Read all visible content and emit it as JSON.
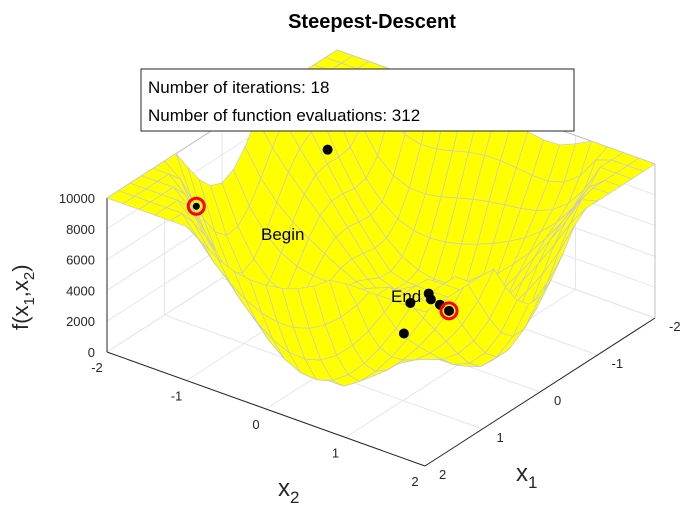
{
  "chart_data": {
    "type": "surface",
    "title": "Steepest-Descent",
    "info_lines": [
      "Number of iterations: 18",
      "Number of function evaluations: 312"
    ],
    "xlabel": {
      "base": "x",
      "sub": "1"
    },
    "ylabel": {
      "base": "x",
      "sub": "2"
    },
    "zlabel": {
      "base": "f(x",
      "sub1": "1",
      "mid": ",x",
      "sub2": "2",
      "end": ")"
    },
    "xlim": [
      -2,
      2
    ],
    "ylim": [
      -2,
      2
    ],
    "zlim": [
      0,
      10000
    ],
    "x_ticks": [
      "-2",
      "-1",
      "0",
      "1",
      "2"
    ],
    "y_ticks": [
      "-2",
      "-1",
      "0",
      "1",
      "2"
    ],
    "z_ticks": [
      "0",
      "2000",
      "4000",
      "6000",
      "8000",
      "10000"
    ],
    "grid": true,
    "surface_color": "#ffff00",
    "edge_color": "#c8c8c8",
    "marker_color": "#ff0000",
    "begin": {
      "label": "Begin",
      "x1": 1.0,
      "x2": -1.6,
      "f": 7800
    },
    "end": {
      "label": "End",
      "x1": 0.2,
      "x2": 1.0,
      "f": 3900
    },
    "iterates": [
      {
        "x1": -0.8,
        "x2": -1.25,
        "f": 7800
      },
      {
        "x1": 0.0,
        "x2": 0.6,
        "f": 3800
      },
      {
        "x1": 0.1,
        "x2": 0.7,
        "f": 3850
      },
      {
        "x1": 0.15,
        "x2": 0.85,
        "f": 3900
      },
      {
        "x1": 0.2,
        "x2": 1.0,
        "f": 3900
      },
      {
        "x1": 0.25,
        "x2": 0.55,
        "f": 3700
      },
      {
        "x1": 0.5,
        "x2": 0.65,
        "f": 2500
      }
    ]
  }
}
